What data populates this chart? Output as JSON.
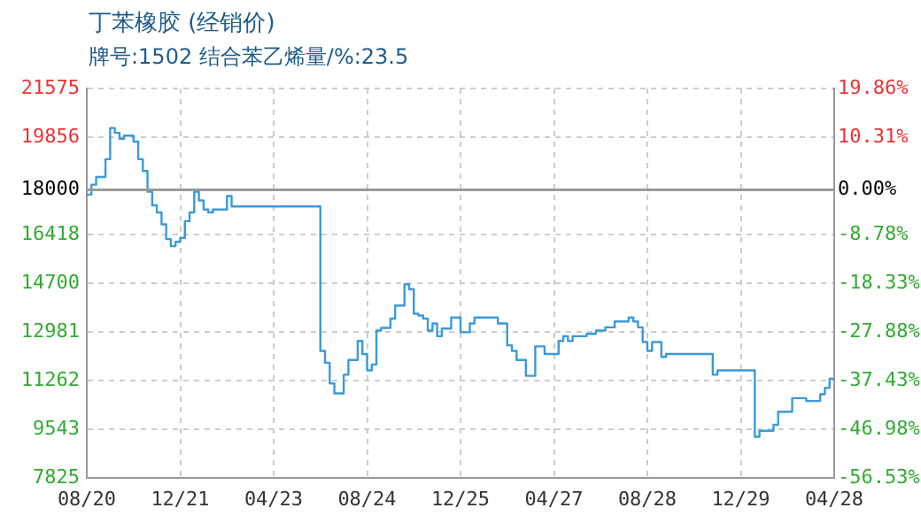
{
  "chart_data": {
    "type": "step",
    "title": "丁苯橡胶 (经销价)",
    "subtitle": "牌号:1502 结合苯乙烯量/%:23.5",
    "categories": [
      "08/20",
      null,
      null,
      null,
      null,
      null,
      null,
      null,
      null,
      null,
      null,
      null,
      null,
      null,
      null,
      null,
      null,
      null,
      null,
      null,
      "12/21",
      null,
      null,
      null,
      null,
      null,
      null,
      null,
      null,
      null,
      null,
      null,
      null,
      null,
      null,
      null,
      null,
      null,
      null,
      null,
      "04/23",
      null,
      null,
      null,
      null,
      null,
      null,
      null,
      null,
      null,
      null,
      null,
      null,
      null,
      null,
      null,
      null,
      null,
      null,
      null,
      "08/24",
      null,
      null,
      null,
      null,
      null,
      null,
      null,
      null,
      null,
      null,
      null,
      null,
      null,
      null,
      null,
      null,
      null,
      null,
      null,
      "12/25",
      null,
      null,
      null,
      null,
      null,
      null,
      null,
      null,
      null,
      null,
      null,
      null,
      null,
      null,
      null,
      null,
      null,
      null,
      null,
      "04/27",
      null,
      null,
      null,
      null,
      null,
      null,
      null,
      null,
      null,
      null,
      null,
      null,
      null,
      null,
      null,
      null,
      null,
      null,
      null,
      "08/28",
      null,
      null,
      null,
      null,
      null,
      null,
      null,
      null,
      null,
      null,
      null,
      null,
      null,
      null,
      null,
      null,
      null,
      null,
      null,
      "12/29",
      null,
      null,
      null,
      null,
      null,
      null,
      null,
      null,
      null,
      null,
      null,
      null,
      null,
      null,
      null,
      null,
      null,
      null,
      null,
      "04/28"
    ],
    "ylim": [
      7825,
      21575
    ],
    "yticks": [
      7825,
      9543,
      11262,
      12981,
      14700,
      16418,
      18000,
      19856,
      21575
    ],
    "y2lim": [
      -56.53,
      19.86
    ],
    "y2ticks": [
      {
        "value": -56.53,
        "label": "-56.53%"
      },
      {
        "value": -46.98,
        "label": "-46.98%"
      },
      {
        "value": -37.43,
        "label": "-37.43%"
      },
      {
        "value": -27.88,
        "label": "-27.88%"
      },
      {
        "value": -18.33,
        "label": "-18.33%"
      },
      {
        "value": -8.78,
        "label": "-8.78%"
      },
      {
        "value": 0,
        "label": "0.00%"
      },
      {
        "value": 10.31,
        "label": "10.31%"
      },
      {
        "value": 19.86,
        "label": "19.86%"
      }
    ],
    "grid": true,
    "legend": false,
    "marker": "none",
    "line_style": "solid",
    "ref_lines": [
      {
        "axis": "y",
        "value": 18000,
        "color": "#999999"
      }
    ],
    "series": [
      {
        "color": "#3a9ad9",
        "values": [
          17830,
          18180,
          18450,
          18450,
          19080,
          20180,
          20010,
          19800,
          19910,
          19910,
          19700,
          19080,
          18660,
          17930,
          17450,
          17200,
          16780,
          16260,
          16010,
          16160,
          16300,
          16890,
          17200,
          17930,
          17620,
          17300,
          17200,
          17300,
          17300,
          17300,
          17780,
          17410,
          17410,
          17410,
          17410,
          17410,
          17410,
          17410,
          17410,
          17410,
          17410,
          17410,
          17410,
          17410,
          17410,
          17410,
          17410,
          17410,
          17410,
          17410,
          12310,
          11890,
          11160,
          10810,
          10810,
          11470,
          11990,
          11990,
          12660,
          12200,
          11620,
          11830,
          13030,
          13120,
          13120,
          13450,
          13910,
          13910,
          14660,
          14490,
          13620,
          13560,
          13450,
          13030,
          13280,
          12830,
          13100,
          13100,
          13490,
          13490,
          12970,
          12970,
          13280,
          13490,
          13490,
          13490,
          13490,
          13490,
          13280,
          13280,
          12510,
          12310,
          11990,
          11990,
          11430,
          11430,
          12470,
          12470,
          12200,
          12200,
          12200,
          12660,
          12830,
          12660,
          12830,
          12830,
          12830,
          12910,
          12910,
          13030,
          13030,
          13140,
          13140,
          13350,
          13350,
          13350,
          13490,
          13350,
          13140,
          12620,
          12310,
          12620,
          12620,
          12100,
          12200,
          12200,
          12200,
          12200,
          12200,
          12200,
          12200,
          12200,
          12200,
          12200,
          11470,
          11620,
          11620,
          11620,
          11620,
          11620,
          11620,
          11620,
          11620,
          9280,
          9490,
          9490,
          9490,
          9700,
          10160,
          10160,
          10160,
          10640,
          10640,
          10640,
          10540,
          10540,
          10540,
          10780,
          11010,
          11330,
          11330
        ]
      }
    ]
  }
}
